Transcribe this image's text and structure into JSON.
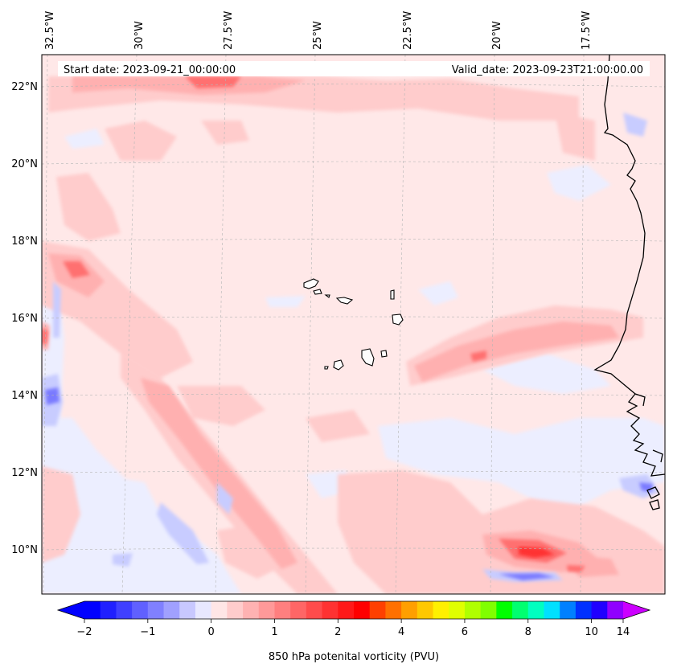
{
  "header": {
    "start_label": "Start date: 2023-09-21_00:00:00",
    "valid_label": "Valid_date: 2023-09-23T21:00:00.00"
  },
  "axes": {
    "lon_labels": [
      "32.5°W",
      "30°W",
      "27.5°W",
      "25°W",
      "22.5°W",
      "20°W",
      "17.5°W"
    ],
    "lat_labels": [
      "22°N",
      "20°N",
      "18°N",
      "16°N",
      "14°N",
      "12°N",
      "10°N"
    ]
  },
  "colorbar": {
    "label": "850 hPa potenital vorticity (PVU)",
    "tick_labels": [
      "−2",
      "−1",
      "0",
      "1",
      "2",
      "4",
      "6",
      "8",
      "10",
      "14"
    ],
    "colors": [
      "#0000ff",
      "#2020ff",
      "#4040ff",
      "#6060ff",
      "#8080ff",
      "#a0a0ff",
      "#c8c8ff",
      "#e8e8ff",
      "#ffe6e6",
      "#ffcccc",
      "#ffb2b2",
      "#ff9999",
      "#ff7f7f",
      "#ff6666",
      "#ff4c4c",
      "#ff3232",
      "#ff1919",
      "#ff0000",
      "#ff4000",
      "#ff7000",
      "#ff9f00",
      "#ffc800",
      "#fff000",
      "#e0ff00",
      "#b0ff00",
      "#80ff00",
      "#00ff00",
      "#00ff70",
      "#00ffc0",
      "#00e0ff",
      "#0080ff",
      "#0030ff",
      "#2000ff",
      "#9000ff"
    ],
    "extend_low_color": "#0000ff",
    "extend_high_color": "#cc00ff"
  },
  "colors": {
    "base_field": "#ffe8e8",
    "weak_positive": "#ffcccc",
    "moderate_positive": "#ffb0b0",
    "strong_positive": "#ff7070",
    "peak_positive": "#ff3030",
    "weak_negative": "#eceeff",
    "moderate_negative": "#c8ccff",
    "strong_negative": "#7a7aff"
  }
}
